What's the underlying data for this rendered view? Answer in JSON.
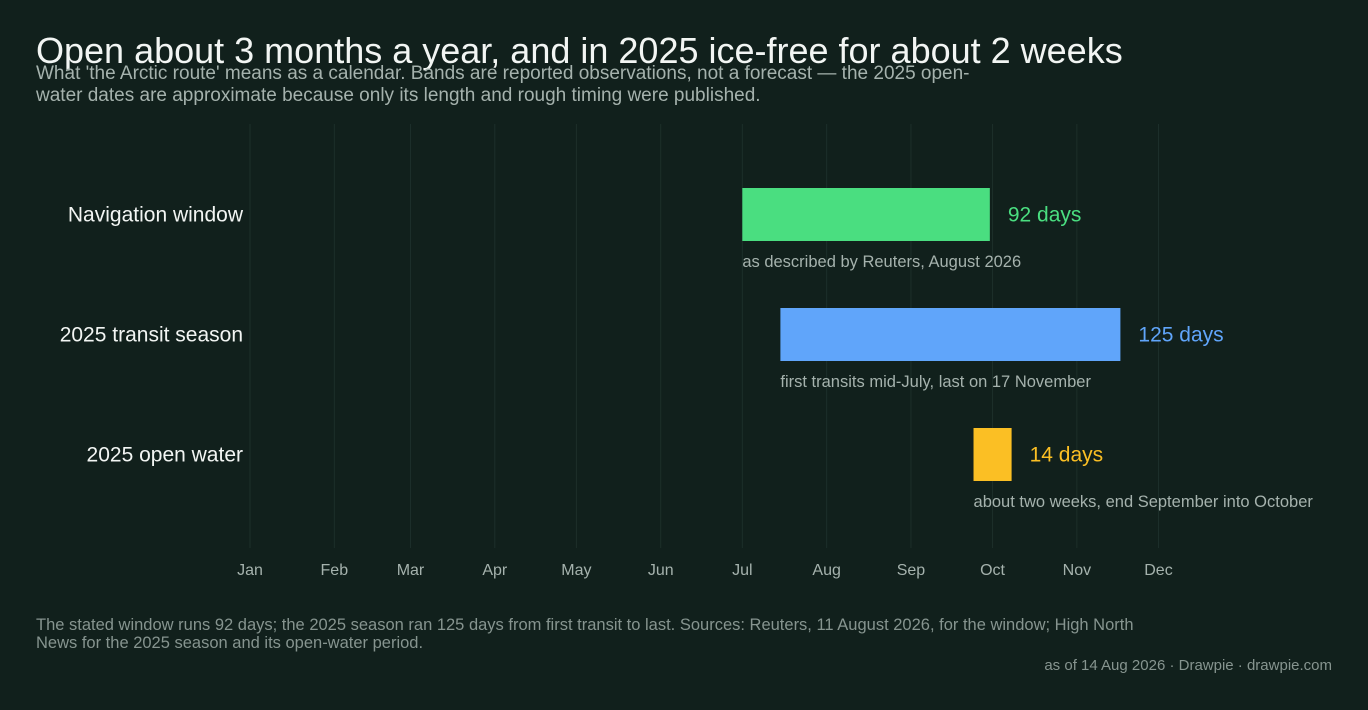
{
  "title": "Open about 3 months a year, and in 2025 ice-free for about 2 weeks",
  "subtitle": "What 'the Arctic route' means as a calendar. Bands are reported observations, not a forecast — the 2025 open-water dates are approximate because only its length and rough timing were published.",
  "footnote": "The stated window runs 92 days; the 2025 season ran 125 days from first transit to last. Sources: Reuters, 11 August 2026, for the window; High North News for the 2025 season and its open-water period.",
  "attribution": "as of 14 Aug 2026  ·  Drawpie · drawpie.com",
  "chart_data": {
    "type": "bar",
    "orientation": "horizontal-range",
    "x_axis": {
      "kind": "date",
      "range": [
        "2025-01-01",
        "2025-12-31"
      ],
      "tick_labels": [
        "Jan",
        "Feb",
        "Mar",
        "Apr",
        "May",
        "Jun",
        "Jul",
        "Aug",
        "Sep",
        "Oct",
        "Nov",
        "Dec"
      ],
      "grid": true
    },
    "series": [
      {
        "name": "Navigation window",
        "start": "2025-07-01",
        "end": "2025-09-30",
        "length_label": "92 days",
        "note": "as described by Reuters, August 2026",
        "color": "#4ade80"
      },
      {
        "name": "2025 transit season",
        "start": "2025-07-15",
        "end": "2025-11-17",
        "length_label": "125 days",
        "note": "first transits mid-July, last on 17 November",
        "color": "#60a5fa"
      },
      {
        "name": "2025 open water",
        "start": "2025-09-24",
        "end": "2025-10-08",
        "length_label": "14 days",
        "note": "about two weeks, end September into October",
        "color": "#fbbf24"
      }
    ]
  }
}
